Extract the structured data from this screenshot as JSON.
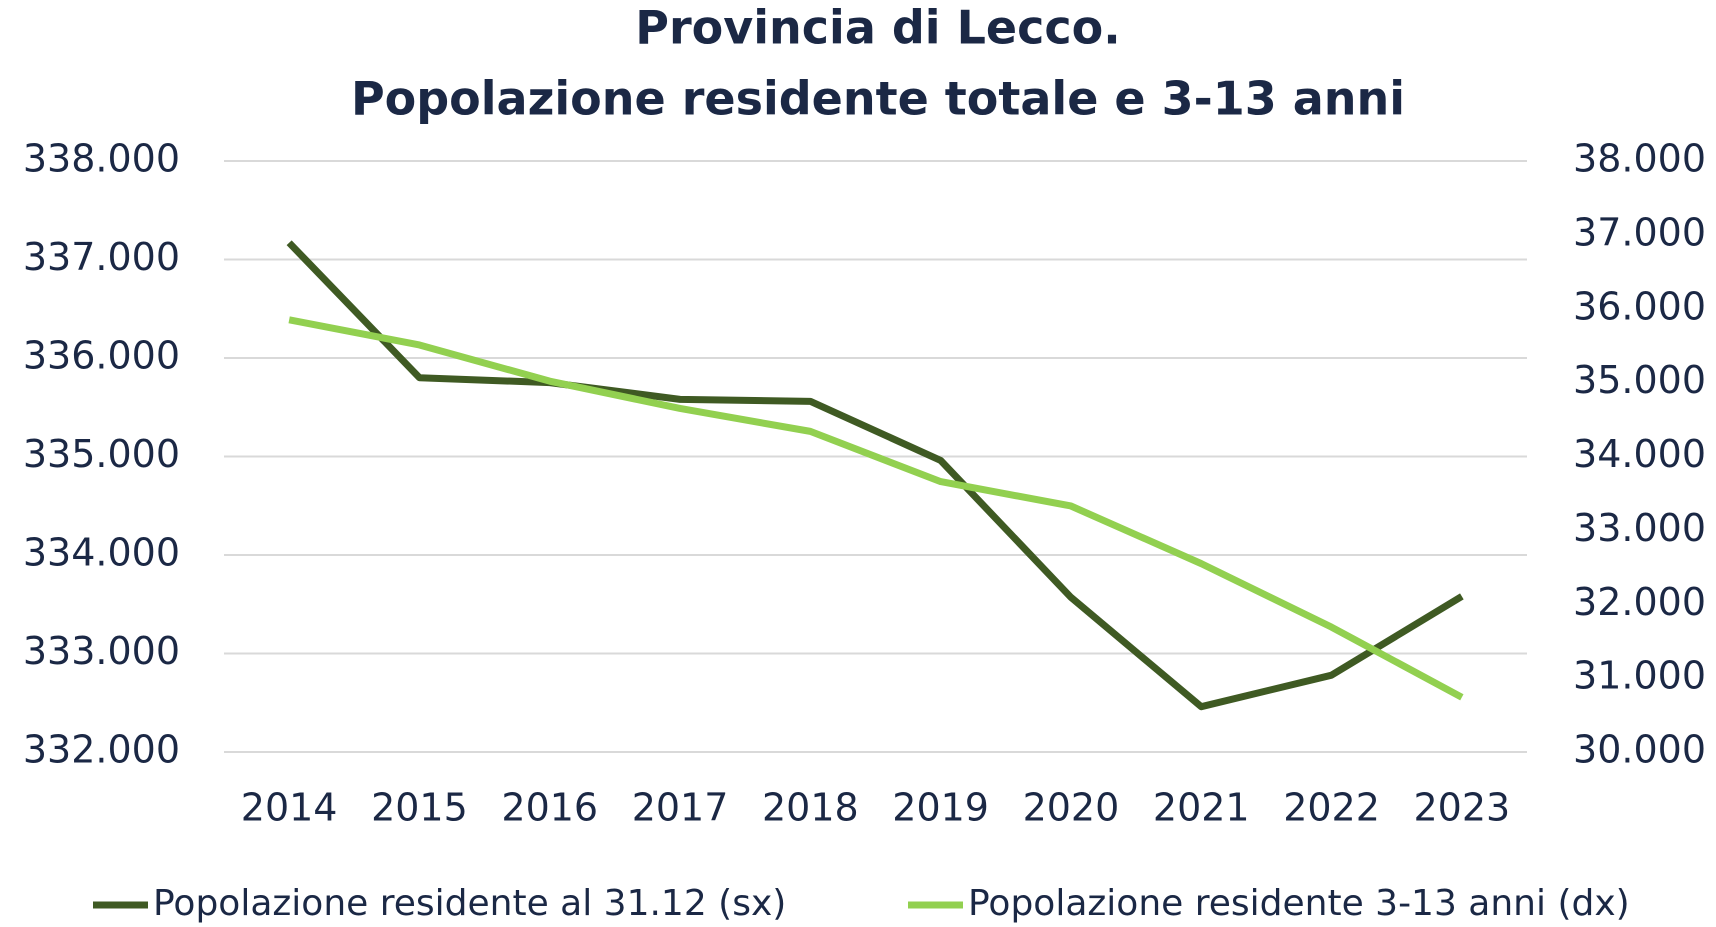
{
  "chart_data": {
    "type": "line",
    "title": "Provincia di Lecco.",
    "subtitle": "Popolazione residente totale e 3-13 anni",
    "categories": [
      "2014",
      "2015",
      "2016",
      "2017",
      "2018",
      "2019",
      "2020",
      "2021",
      "2022",
      "2023"
    ],
    "series": [
      {
        "name": "Popolazione residente al 31.12 (sx)",
        "color": "#3f5a23",
        "values": [
          337170,
          335800,
          335750,
          335580,
          335560,
          334960,
          333570,
          332460,
          332780,
          333580
        ]
      },
      {
        "name": "Popolazione residente 3-13 anni (dx)",
        "color": "#92d050",
        "axis": "y2",
        "values": [
          35850,
          35510,
          35020,
          34650,
          34340,
          33660,
          33330,
          32550,
          31690,
          30740
        ]
      }
    ],
    "ylim": [
      332000,
      338000
    ],
    "yticks": [
      {
        "value": 332000,
        "label": "332.000"
      },
      {
        "value": 333000,
        "label": "333.000"
      },
      {
        "value": 334000,
        "label": "334.000"
      },
      {
        "value": 335000,
        "label": "335.000"
      },
      {
        "value": 336000,
        "label": "336.000"
      },
      {
        "value": 337000,
        "label": "337.000"
      },
      {
        "value": 338000,
        "label": "338.000"
      }
    ],
    "y2lim": [
      30000,
      38000
    ],
    "y2ticks": [
      {
        "value": 30000,
        "label": "30.000"
      },
      {
        "value": 31000,
        "label": "31.000"
      },
      {
        "value": 32000,
        "label": "32.000"
      },
      {
        "value": 33000,
        "label": "33.000"
      },
      {
        "value": 34000,
        "label": "34.000"
      },
      {
        "value": 35000,
        "label": "35.000"
      },
      {
        "value": 36000,
        "label": "36.000"
      },
      {
        "value": 37000,
        "label": "37.000"
      },
      {
        "value": 38000,
        "label": "38.000"
      }
    ],
    "grid": true,
    "legend": "bottom"
  }
}
